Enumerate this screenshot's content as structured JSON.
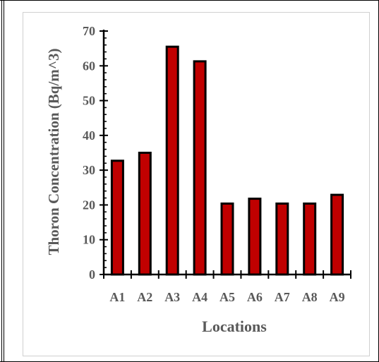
{
  "chart_data": {
    "type": "bar",
    "categories": [
      "A1",
      "A2",
      "A3",
      "A4",
      "A5",
      "A6",
      "A7",
      "A8",
      "A9"
    ],
    "values": [
      32.7,
      35.0,
      65.5,
      61.3,
      20.4,
      21.8,
      20.4,
      20.4,
      22.9
    ],
    "title": "",
    "xlabel": "Locations",
    "ylabel": "Thoron Concentration (Bq/m^3)",
    "ylim": [
      0,
      70
    ],
    "yticks": [
      "0",
      "10",
      "20",
      "30",
      "40",
      "50",
      "60",
      "70"
    ],
    "grid": false,
    "legend": "none",
    "colors": {
      "bar_fill": "#c00000",
      "bar_stroke": "#000000",
      "axis": "#000000",
      "text": "#595959",
      "chart_border": "#d0d0d0"
    }
  }
}
